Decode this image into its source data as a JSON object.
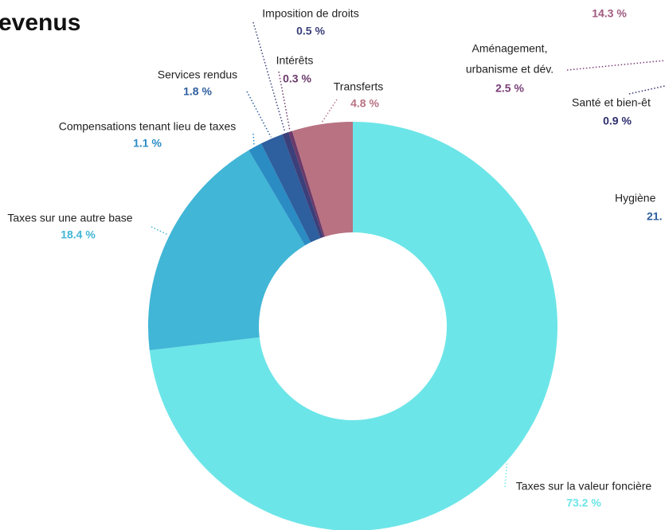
{
  "chart_data": {
    "type": "donut",
    "title": "evenus",
    "categories": [
      "Taxes sur la valeur foncière",
      "Taxes sur une autre base",
      "Compensations tenant lieu de taxes",
      "Services rendus",
      "Imposition de droits",
      "Intérêts",
      "Transferts"
    ],
    "values": [
      73.2,
      18.4,
      1.1,
      1.8,
      0.5,
      0.3,
      4.8
    ],
    "value_labels": [
      "73.2 %",
      "18.4 %",
      "1.1 %",
      "1.8 %",
      "0.5 %",
      "0.3 %",
      "4.8 %"
    ],
    "colors": [
      "#6ce5e8",
      "#41b6d6",
      "#2b8cc4",
      "#2e5f9e",
      "#3b3f7a",
      "#6a3a6a",
      "#b87282"
    ],
    "annotations": [
      {
        "text": "14.3 %",
        "color": "#a05a80"
      },
      {
        "text": "Aménagement,",
        "color": "#222222"
      },
      {
        "text": "urbanisme et dév.",
        "color": "#222222"
      },
      {
        "text": "2.5 %",
        "color": "#7a3f78"
      },
      {
        "text": "Santé et bien-êt",
        "color": "#222222"
      },
      {
        "text": "0.9 %",
        "color": "#2d2d6e"
      },
      {
        "text": "Hygiène",
        "color": "#222222"
      },
      {
        "text": "21.",
        "color": "#2e5f9e"
      }
    ]
  }
}
